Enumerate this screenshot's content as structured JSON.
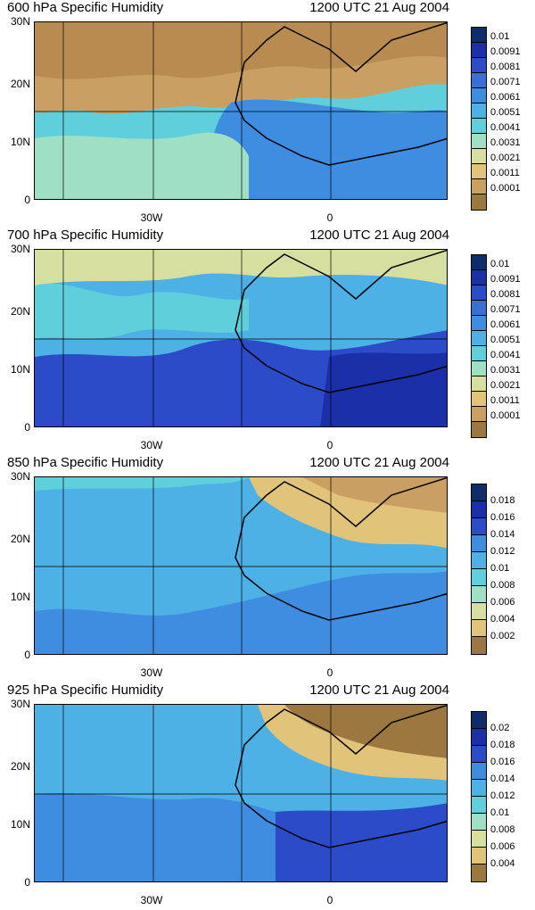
{
  "panels": [
    {
      "title": "600 hPa Specific Humidity",
      "time": "1200 UTC 21 Aug 2004",
      "colorbar_labels": [
        "0.01",
        "0.0091",
        "0.0081",
        "0.0071",
        "0.0061",
        "0.0051",
        "0.0041",
        "0.0031",
        "0.0021",
        "0.0011",
        "0.0001"
      ],
      "colorbar_colors": [
        "#0f2d6b",
        "#1a2fa8",
        "#2b4bc9",
        "#3c6fd6",
        "#3f8de0",
        "#4db1e6",
        "#5fd0db",
        "#9fe0c4",
        "#d7dfa0",
        "#e2c37a",
        "#c9a062",
        "#9c7740"
      ]
    },
    {
      "title": "700 hPa Specific Humidity",
      "time": "1200 UTC 21 Aug 2004",
      "colorbar_labels": [
        "0.01",
        "0.0091",
        "0.0081",
        "0.0071",
        "0.0061",
        "0.0051",
        "0.0041",
        "0.0031",
        "0.0021",
        "0.0011",
        "0.0001"
      ],
      "colorbar_colors": [
        "#0f2d6b",
        "#1a2fa8",
        "#2b4bc9",
        "#3c6fd6",
        "#3f8de0",
        "#4db1e6",
        "#5fd0db",
        "#9fe0c4",
        "#d7dfa0",
        "#e2c37a",
        "#c9a062",
        "#9c7740"
      ]
    },
    {
      "title": "850 hPa Specific Humidity",
      "time": "1200 UTC 21 Aug 2004",
      "colorbar_labels": [
        "0.018",
        "0.016",
        "0.014",
        "0.012",
        "0.01",
        "0.008",
        "0.006",
        "0.004",
        "0.002"
      ],
      "colorbar_colors": [
        "#0f2d6b",
        "#1a2fa8",
        "#2b4bc9",
        "#3f8de0",
        "#4db1e6",
        "#5fd0db",
        "#9fe0c4",
        "#d7dfa0",
        "#e2c37a",
        "#9c7740"
      ]
    },
    {
      "title": "925 hPa Specific Humidity",
      "time": "1200 UTC 21 Aug 2004",
      "colorbar_labels": [
        "0.02",
        "0.018",
        "0.016",
        "0.014",
        "0.012",
        "0.01",
        "0.008",
        "0.006",
        "0.004"
      ],
      "colorbar_colors": [
        "#0f2d6b",
        "#1a2fa8",
        "#2b4bc9",
        "#3f8de0",
        "#4db1e6",
        "#5fd0db",
        "#9fe0c4",
        "#d7dfa0",
        "#e2c37a",
        "#9c7740"
      ]
    }
  ],
  "axes": {
    "y_labels": [
      "30N",
      "20N",
      "10N",
      "0"
    ],
    "x_labels": [
      "30W",
      "0"
    ]
  }
}
